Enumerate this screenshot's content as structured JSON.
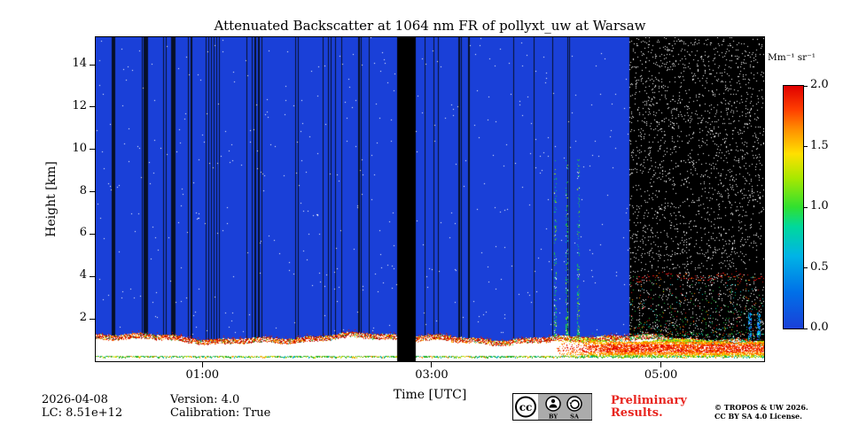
{
  "title": "Attenuated Backscatter at 1064 nm FR of pollyxt_uw at Warsaw",
  "axes": {
    "xlabel": "Time [UTC]",
    "ylabel": "Height [km]"
  },
  "colorbar": {
    "label": "Mm⁻¹ sr⁻¹",
    "ticks": [
      "2.0",
      "1.5",
      "1.0",
      "0.5",
      "0.0"
    ],
    "min": 0.0,
    "max": 2.0
  },
  "footer": {
    "date": "2026-04-08",
    "lc": "LC: 8.51e+12",
    "version": "Version: 4.0",
    "calibration": "Calibration: True",
    "preliminary_line1": "Preliminary",
    "preliminary_line2": "Results.",
    "copyright_line1": "© TROPOS & UW 2026.",
    "copyright_line2": "CC BY SA 4.0 License.",
    "license_badge": {
      "cc": "cc",
      "by": "BY",
      "sa": "SA"
    }
  },
  "chart_data": {
    "type": "heatmap",
    "title": "Attenuated Backscatter at 1064 nm FR of pollyxt_uw at Warsaw",
    "xlabel": "Time [UTC]",
    "ylabel": "Height [km]",
    "x_unit": "hours UTC",
    "x_range": [
      0.07,
      5.9
    ],
    "x_ticks": [
      {
        "hour": 1,
        "label": "01:00"
      },
      {
        "hour": 3,
        "label": "03:00"
      },
      {
        "hour": 5,
        "label": "05:00"
      }
    ],
    "y_range_km": [
      0,
      15.3
    ],
    "y_ticks_km": [
      2,
      4,
      6,
      8,
      10,
      12,
      14
    ],
    "value_range": [
      0.0,
      2.0
    ],
    "value_units": "Mm⁻¹ sr⁻¹",
    "colormap": "jet-like",
    "colormap_stops": [
      [
        0.0,
        "#1a40d8"
      ],
      [
        0.15,
        "#0070e8"
      ],
      [
        0.3,
        "#00b4e6"
      ],
      [
        0.42,
        "#00d89c"
      ],
      [
        0.5,
        "#30e030"
      ],
      [
        0.62,
        "#a8e800"
      ],
      [
        0.72,
        "#ffe000"
      ],
      [
        0.82,
        "#ff9000"
      ],
      [
        0.9,
        "#ff4000"
      ],
      [
        1.0,
        "#e00000"
      ]
    ],
    "colors": {
      "background": "#1a40d8",
      "stripe": "#071028",
      "no_data": "#000000"
    },
    "features": {
      "clear_air_background_value": 0.0,
      "no_data_gap_hours": [
        2.7,
        2.87
      ],
      "calibration_stripes": {
        "count": 46,
        "hours_span": [
          0.07,
          4.6
        ]
      },
      "daytime_noise_region": {
        "start_hour": 4.73,
        "end_hour": 5.9,
        "appearance": "black with dense white speckle noise"
      },
      "boundary_layer": {
        "top_km_mean": 1.15,
        "top_km_min": 0.95,
        "top_km_max": 1.35,
        "appearance": "saturated white band with red/orange speckle along top edge"
      },
      "surface_echo": {
        "height_km": 0.22,
        "appearance": "thin green-yellow line"
      },
      "morning_aerosol_plume": {
        "start_hour": 4.05,
        "end_hour": 5.9,
        "base_km": 0.28,
        "top_km": 1.0,
        "values": "1.0-2.0 yellow-orange-red"
      },
      "elevated_scatter_line": {
        "height_km": 4.0,
        "start_hour": 4.75,
        "end_hour": 5.9,
        "color": "red dotted"
      },
      "green_speckle_columns_hours": [
        4.08,
        4.18,
        4.28
      ],
      "right_edge_cyan_columns_hours": [
        5.78,
        5.86
      ]
    }
  }
}
